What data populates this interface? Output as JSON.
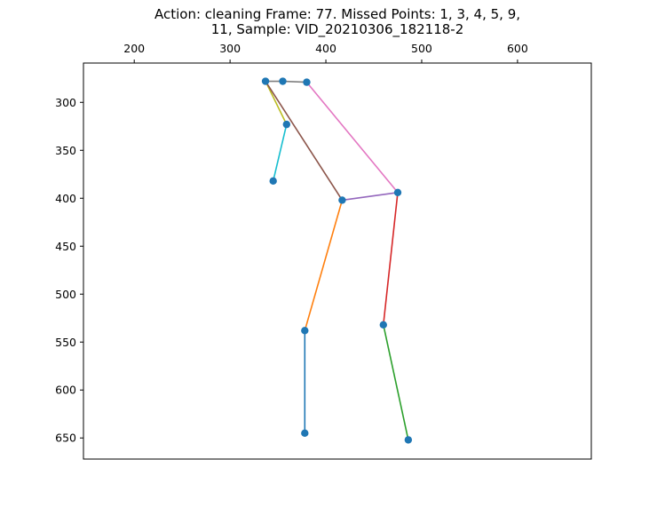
{
  "chart_data": {
    "type": "scatter",
    "title_line1": "Action: cleaning   Frame: 77. Missed Points: 1, 3, 4, 5, 9,",
    "title_line2": "11,  Sample: VID_20210306_182118-2",
    "xlabel": "",
    "ylabel": "",
    "x_axis_position": "top",
    "y_inverted": true,
    "xlim": [
      147,
      677
    ],
    "ylim": [
      672,
      259
    ],
    "x_ticks": [
      200,
      300,
      400,
      500,
      600
    ],
    "y_ticks": [
      300,
      350,
      400,
      450,
      500,
      550,
      600,
      650
    ],
    "grid": false,
    "point_color": "#1f77b4",
    "points": [
      {
        "x": 337,
        "y": 278
      },
      {
        "x": 355,
        "y": 278
      },
      {
        "x": 380,
        "y": 279
      },
      {
        "x": 359,
        "y": 323
      },
      {
        "x": 345,
        "y": 382
      },
      {
        "x": 417,
        "y": 402
      },
      {
        "x": 475,
        "y": 394
      },
      {
        "x": 460,
        "y": 532
      },
      {
        "x": 378,
        "y": 538
      },
      {
        "x": 378,
        "y": 645
      },
      {
        "x": 486,
        "y": 652
      }
    ],
    "segments": [
      {
        "from": [
          337,
          278
        ],
        "to": [
          355,
          278
        ],
        "color": "#7f7f7f"
      },
      {
        "from": [
          355,
          278
        ],
        "to": [
          380,
          279
        ],
        "color": "#7f7f7f"
      },
      {
        "from": [
          337,
          278
        ],
        "to": [
          359,
          323
        ],
        "color": "#bcbd22"
      },
      {
        "from": [
          359,
          323
        ],
        "to": [
          345,
          382
        ],
        "color": "#17becf"
      },
      {
        "from": [
          337,
          278
        ],
        "to": [
          417,
          402
        ],
        "color": "#8c564b"
      },
      {
        "from": [
          380,
          279
        ],
        "to": [
          475,
          394
        ],
        "color": "#e377c2"
      },
      {
        "from": [
          417,
          402
        ],
        "to": [
          475,
          394
        ],
        "color": "#9467bd"
      },
      {
        "from": [
          475,
          394
        ],
        "to": [
          460,
          532
        ],
        "color": "#d62728"
      },
      {
        "from": [
          460,
          532
        ],
        "to": [
          486,
          652
        ],
        "color": "#2ca02c"
      },
      {
        "from": [
          417,
          402
        ],
        "to": [
          378,
          538
        ],
        "color": "#ff7f0e"
      },
      {
        "from": [
          378,
          538
        ],
        "to": [
          378,
          645
        ],
        "color": "#1f77b4"
      }
    ]
  }
}
